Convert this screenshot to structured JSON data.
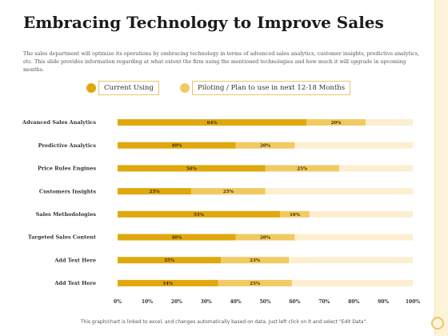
{
  "title": "Embracing Technology to Improve Sales",
  "description": "The sales department will optimize its operations by embracing technology in terms of advanced sales analytics, customer insights, predictive analytics, etc. This slide provides information regarding at what extent the firm using the mentioned technologies and how much it will upgrade in upcoming months.",
  "footer": "This graph/chart is linked to excel, and changes automatically based on data. Just left click on it and select \"Edit Data\".",
  "colors": {
    "current": "#e0a80d",
    "piloting": "#f2ca62",
    "track": "#fcefd0",
    "accent_band": "#fdf3d8"
  },
  "chart_data": {
    "type": "bar",
    "orientation": "horizontal",
    "stacked": true,
    "categories": [
      "Advanced Sales Analytics",
      "Predictive Analytics",
      "Price Rules Engines",
      "Customers Insights",
      "Sales Methodologies",
      "Targeted Sales Content",
      "Add Text Here",
      "Add Text Here"
    ],
    "series": [
      {
        "name": "Current Using",
        "values": [
          64,
          40,
          50,
          25,
          55,
          40,
          35,
          34
        ]
      },
      {
        "name": "Piloting / Plan to use in next 12-18 Months",
        "values": [
          20,
          20,
          25,
          25,
          10,
          20,
          23,
          25
        ]
      }
    ],
    "xlim": [
      0,
      100
    ],
    "xticks": [
      "0%",
      "10%",
      "20%",
      "30%",
      "40%",
      "50%",
      "60%",
      "70%",
      "80%",
      "90%",
      "100%"
    ],
    "value_suffix": "%",
    "legend_position": "top",
    "grid": false,
    "title": "",
    "xlabel": "",
    "ylabel": ""
  }
}
